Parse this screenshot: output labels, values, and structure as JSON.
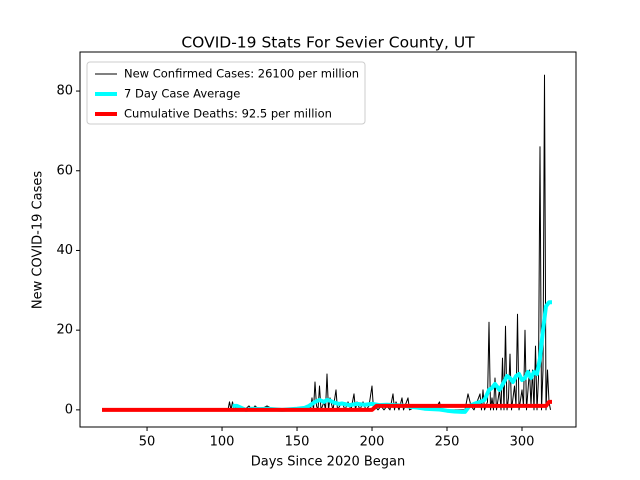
{
  "chart_data": {
    "type": "line",
    "title": "COVID-19 Stats For Sevier County, UT",
    "x_label": "Days Since 2020 Began",
    "y_label": "New COVID-19 Cases",
    "xlim": [
      5.3,
      336
    ],
    "ylim": [
      -4.3,
      89.8
    ],
    "xticks": [
      50,
      100,
      150,
      200,
      250,
      300
    ],
    "yticks": [
      0,
      20,
      40,
      60,
      80
    ],
    "legend": "upper left",
    "series": [
      {
        "name": "New Confirmed Cases: 26100 per million",
        "color": "#000000",
        "x": [
          20,
          104,
          105,
          106,
          107,
          108,
          110,
          112,
          115,
          118,
          120,
          122,
          125,
          130,
          135,
          140,
          150,
          155,
          158,
          159,
          160,
          161,
          162,
          163,
          164,
          165,
          166,
          168,
          169,
          170,
          171,
          172,
          174,
          176,
          177,
          180,
          182,
          184,
          186,
          188,
          189,
          190,
          192,
          194,
          196,
          198,
          200,
          201,
          202,
          204,
          206,
          208,
          210,
          212,
          214,
          215,
          216,
          218,
          220,
          221,
          224,
          225,
          230,
          235,
          240,
          242,
          245,
          246,
          250,
          255,
          262,
          264,
          266,
          268,
          270,
          272,
          273,
          274,
          275,
          277,
          278,
          279,
          280,
          281,
          282,
          283,
          285,
          286,
          287,
          288,
          289,
          290,
          291,
          292,
          293,
          295,
          296,
          297,
          298,
          300,
          301,
          302,
          303,
          305,
          306,
          307,
          308,
          309,
          310,
          311,
          312,
          313,
          314,
          315,
          316,
          317,
          318,
          319
        ],
        "values": [
          0,
          0,
          2,
          0,
          2,
          0,
          1,
          0,
          0,
          1,
          0,
          1,
          0,
          1,
          0,
          0,
          0,
          0,
          1,
          0,
          3,
          0,
          7,
          1,
          0,
          6,
          0,
          2,
          0,
          9,
          0,
          3,
          0,
          5,
          0,
          2,
          0,
          2,
          0,
          4,
          0,
          2,
          0,
          2,
          0,
          1,
          6,
          0,
          1,
          0,
          1,
          0,
          1,
          0,
          4,
          0,
          2,
          0,
          3,
          0,
          3,
          0,
          1,
          0,
          1,
          0,
          2,
          0,
          0,
          0,
          0,
          4,
          1,
          0,
          2,
          4,
          0,
          5,
          0,
          2,
          22,
          0,
          3,
          0,
          8,
          0,
          5,
          0,
          13,
          0,
          21,
          0,
          3,
          14,
          0,
          6,
          1,
          24,
          0,
          5,
          1,
          20,
          0,
          10,
          1,
          10,
          0,
          16,
          0,
          8,
          66,
          0,
          10,
          84,
          0,
          10,
          2,
          0
        ]
      },
      {
        "name": "7 Day Case Average",
        "color": "#00ffff",
        "x": [
          107,
          110,
          113,
          116,
          120,
          125,
          130,
          140,
          150,
          155,
          158,
          160,
          162,
          165,
          168,
          170,
          172,
          175,
          178,
          180,
          185,
          190,
          195,
          200,
          205,
          210,
          215,
          220,
          225,
          230,
          235,
          240,
          245,
          250,
          255,
          260,
          262,
          265,
          268,
          272,
          275,
          278,
          280,
          282,
          285,
          288,
          290,
          292,
          294,
          296,
          298,
          300,
          302,
          304,
          306,
          308,
          310,
          312,
          314,
          316,
          318,
          320
        ],
        "values": [
          1,
          1,
          0.5,
          0,
          0.3,
          0.2,
          0.3,
          0,
          0.3,
          0.5,
          1,
          1.5,
          2,
          2.5,
          2,
          2.5,
          2.3,
          1.8,
          1.5,
          1.6,
          1.2,
          1.5,
          1.3,
          1.5,
          1.2,
          1.3,
          1.2,
          1.1,
          0.8,
          0.6,
          0.3,
          0.2,
          0.1,
          -0.2,
          -0.4,
          -0.5,
          -0.5,
          1,
          1.5,
          2,
          2.5,
          5,
          5.5,
          6.5,
          5,
          7,
          8.5,
          8,
          7,
          8.5,
          9,
          7.5,
          8,
          9.5,
          8,
          9.5,
          9,
          13,
          20,
          26,
          27,
          27
        ]
      },
      {
        "name": "Cumulative Deaths: 92.5 per million",
        "color": "#ff0000",
        "x": [
          20,
          200,
          203,
          316,
          318,
          320
        ],
        "values": [
          0,
          0,
          1,
          1,
          2,
          2
        ]
      }
    ]
  }
}
